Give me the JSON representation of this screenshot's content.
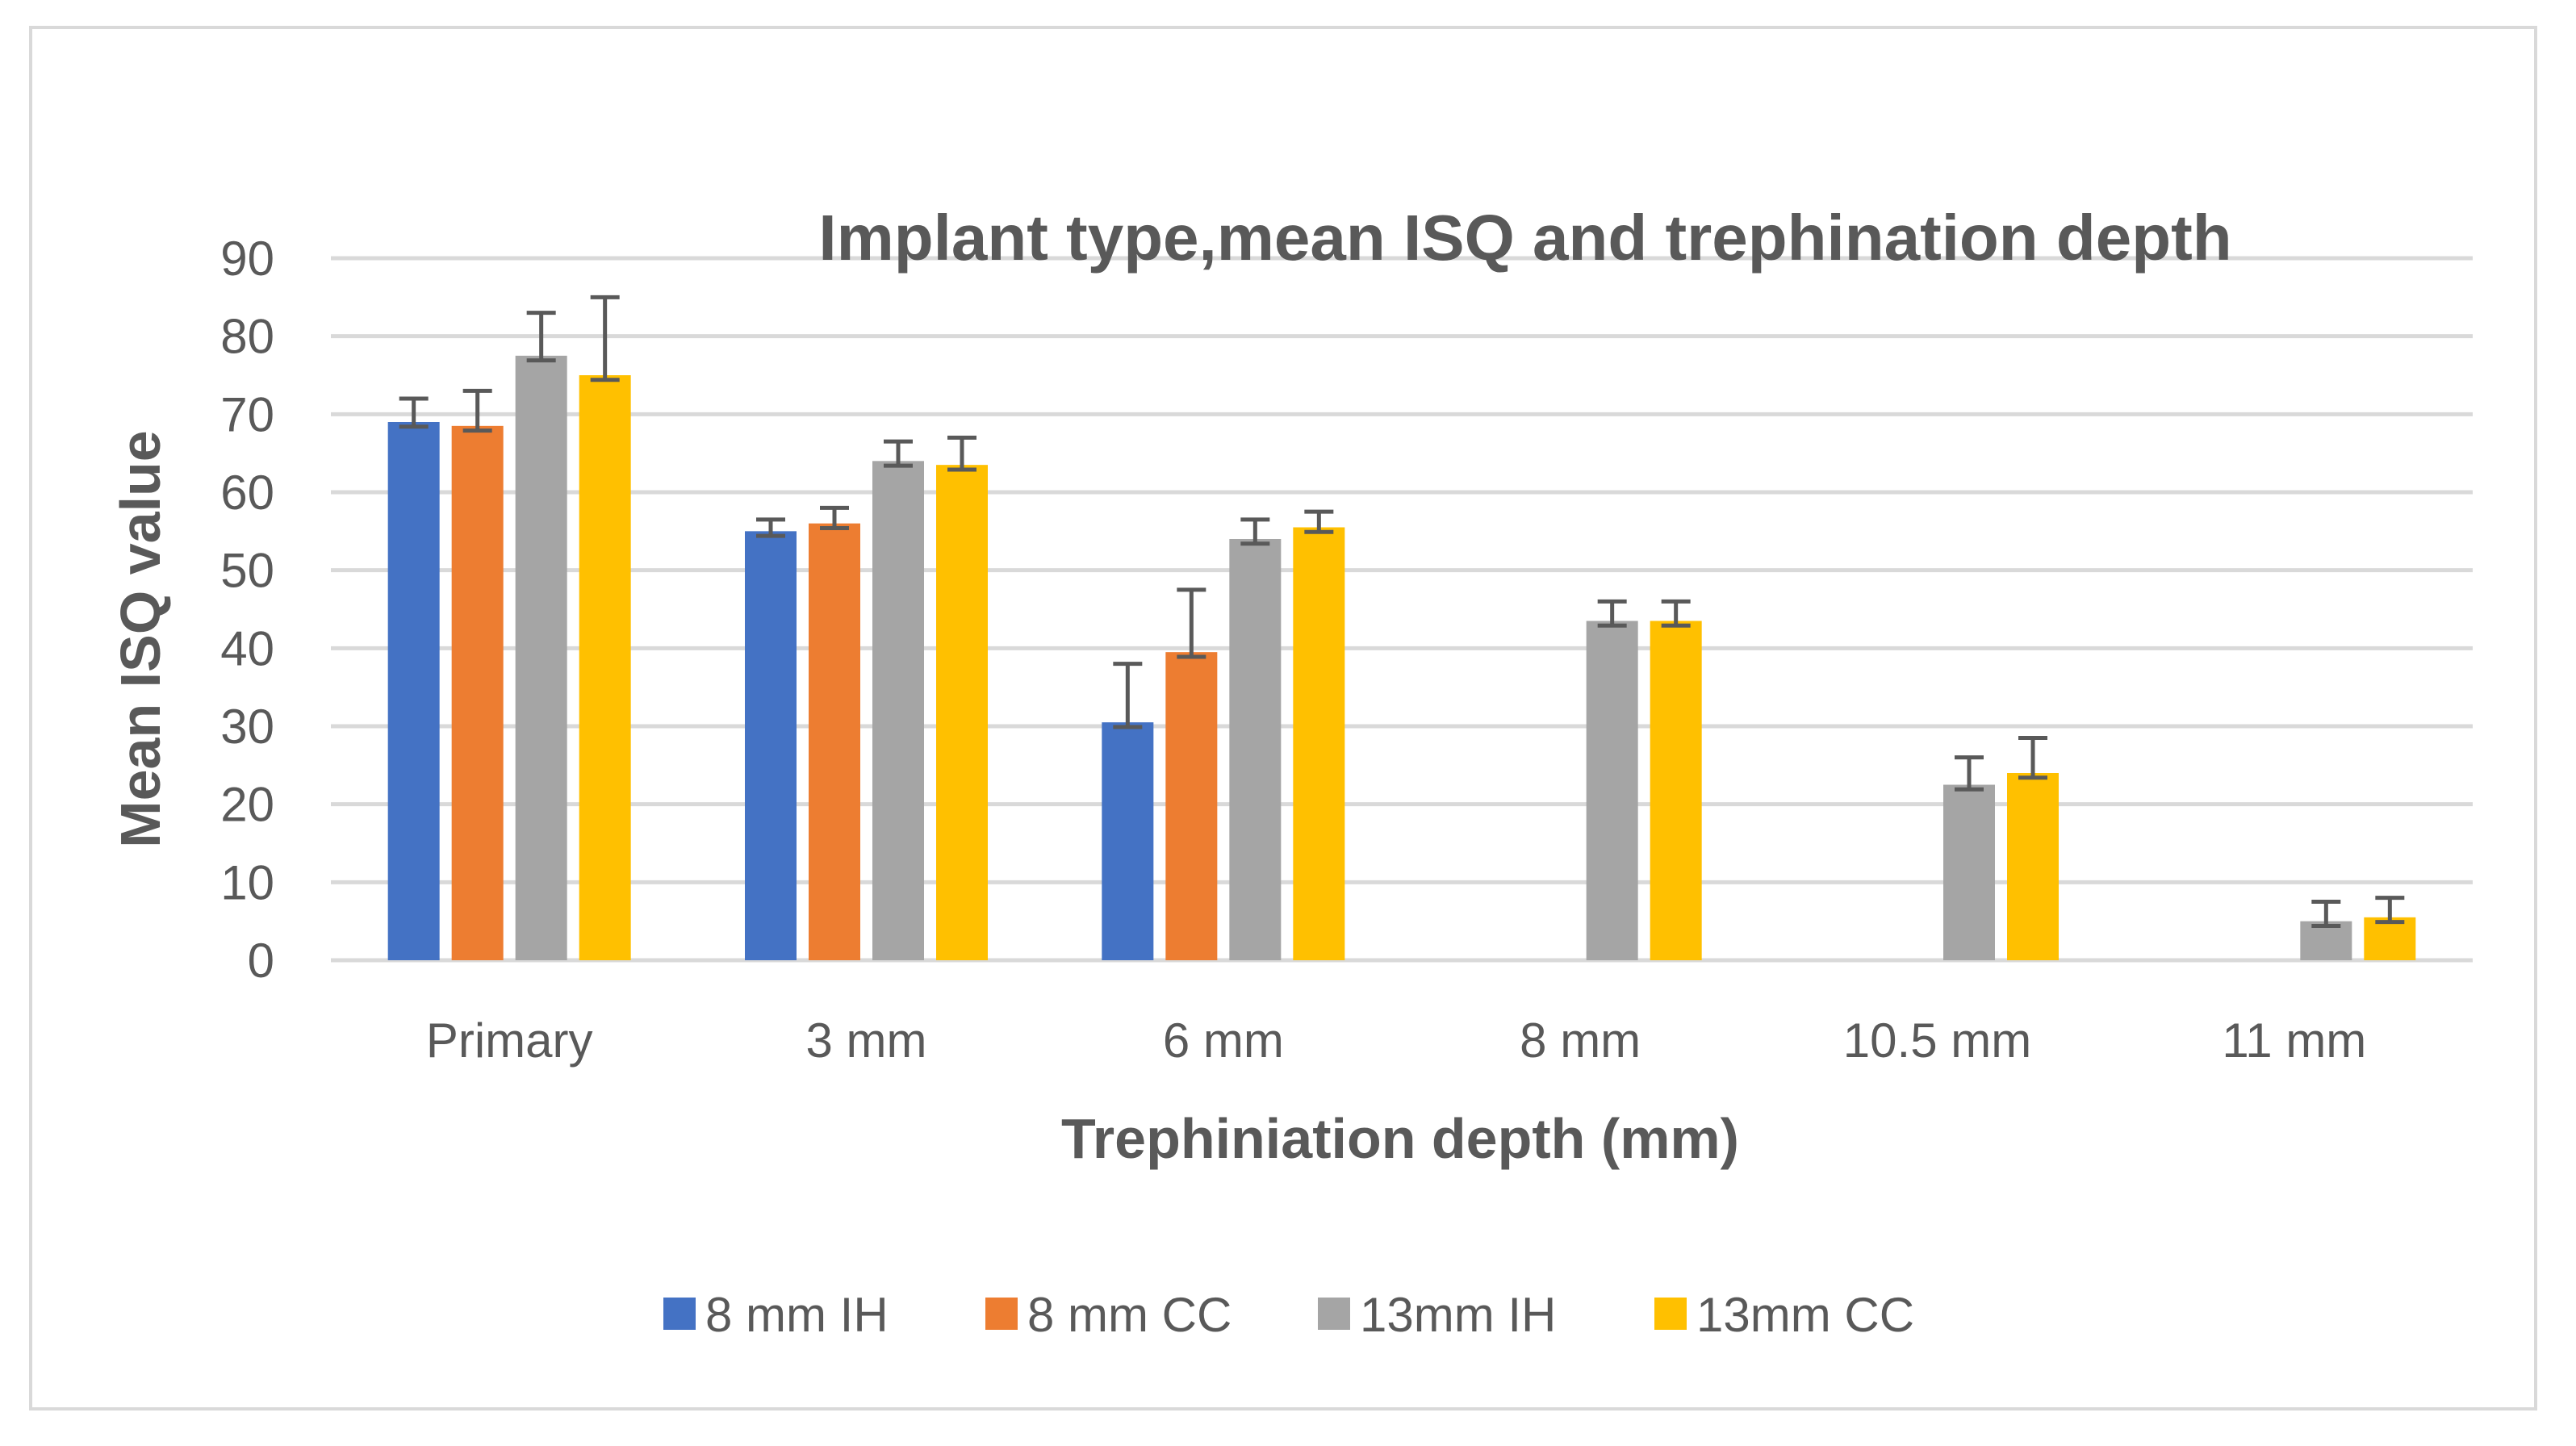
{
  "chart_data": {
    "type": "bar",
    "title": "Implant type,mean ISQ and trephination depth",
    "xlabel": "Trephiniation depth (mm)",
    "ylabel": "Mean ISQ value",
    "ylim": [
      0,
      90
    ],
    "yticks": [
      0,
      10,
      20,
      30,
      40,
      50,
      60,
      70,
      80,
      90
    ],
    "grid": true,
    "legend": "bottom",
    "categories": [
      "Primary",
      "3 mm",
      "6 mm",
      "8 mm",
      "10.5 mm",
      "11 mm"
    ],
    "series": [
      {
        "name": "8 mm IH",
        "color": "#4472C4",
        "values": [
          69,
          55,
          30.5,
          null,
          null,
          null
        ],
        "errors": [
          3,
          1.5,
          7.5,
          null,
          null,
          null
        ]
      },
      {
        "name": "8 mm CC",
        "color": "#ED7D31",
        "values": [
          68.5,
          56,
          39.5,
          null,
          null,
          null
        ],
        "errors": [
          4.5,
          2,
          8,
          null,
          null,
          null
        ]
      },
      {
        "name": "13mm IH",
        "color": "#A5A5A5",
        "values": [
          77.5,
          64,
          54,
          43.5,
          22.5,
          5
        ],
        "errors": [
          5.5,
          2.5,
          2.5,
          2.5,
          3.5,
          2.5
        ]
      },
      {
        "name": "13mm CC",
        "color": "#FFC000",
        "values": [
          75,
          63.5,
          55.5,
          43.5,
          24,
          5.5
        ],
        "errors": [
          10,
          3.5,
          2,
          2.5,
          4.5,
          2.5
        ]
      }
    ]
  }
}
